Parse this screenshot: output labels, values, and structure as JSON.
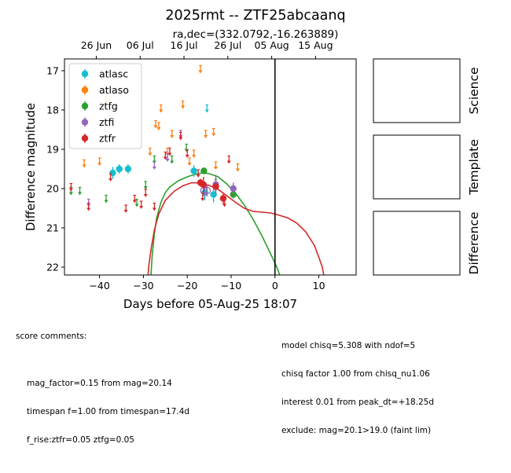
{
  "chart_data": {
    "type": "scatter",
    "title": "2025rmt -- ZTF25abcaanq",
    "subtitle": "ra,dec=(332.0792,-16.263889)",
    "xlabel": "Days before 05-Aug-25 18:07",
    "ylabel": "Difference magnitude",
    "xlim": [
      -48,
      18.5
    ],
    "ylim": [
      22.2,
      16.7
    ],
    "x_ticks": [
      -40,
      -30,
      -20,
      -10,
      0,
      10
    ],
    "x_tick_labels": [
      "−40",
      "−30",
      "−20",
      "−10",
      "0",
      "10"
    ],
    "y_ticks": [
      17,
      18,
      19,
      20,
      21,
      22
    ],
    "y_tick_labels": [
      "17",
      "18",
      "19",
      "20",
      "21",
      "22"
    ],
    "top_axis": {
      "ticks": [
        -40.75,
        -30.75,
        -20.75,
        -10.75,
        -0.75,
        9.25
      ],
      "labels": [
        "26 Jun",
        "06 Jul",
        "16 Jul",
        "26 Jul",
        "05 Aug",
        "15 Aug"
      ]
    },
    "vline_x": 0,
    "grid": false,
    "legend_position": "upper-left",
    "series": [
      {
        "name": "atlasc",
        "color": "#17becf",
        "detections": [
          {
            "x": -37,
            "y": 19.6,
            "err": 0.15
          },
          {
            "x": -35.5,
            "y": 19.5,
            "err": 0.12
          },
          {
            "x": -33.5,
            "y": 19.5,
            "err": 0.12
          },
          {
            "x": -18.5,
            "y": 19.55,
            "err": 0.15
          },
          {
            "x": -16,
            "y": 20.1,
            "err": 0.2
          },
          {
            "x": -14,
            "y": 20.15,
            "err": 0.2
          }
        ],
        "upper_limits": [
          {
            "x": -46.5,
            "y": 20.05
          },
          {
            "x": -15.5,
            "y": 17.95
          }
        ]
      },
      {
        "name": "atlaso",
        "color": "#ff7f0e",
        "detections": [],
        "upper_limits": [
          {
            "x": -43.5,
            "y": 19.35
          },
          {
            "x": -40,
            "y": 19.3
          },
          {
            "x": -38.5,
            "y": 17.7
          },
          {
            "x": -28.5,
            "y": 19.05
          },
          {
            "x": -27.2,
            "y": 18.35
          },
          {
            "x": -26.5,
            "y": 18.4
          },
          {
            "x": -26,
            "y": 17.95
          },
          {
            "x": -24.5,
            "y": 19.05
          },
          {
            "x": -23.5,
            "y": 18.6
          },
          {
            "x": -21,
            "y": 17.85
          },
          {
            "x": -19.5,
            "y": 19.3
          },
          {
            "x": -18.5,
            "y": 19.1
          },
          {
            "x": -17,
            "y": 16.95
          },
          {
            "x": -15.8,
            "y": 18.6
          },
          {
            "x": -14,
            "y": 18.55
          },
          {
            "x": -13.5,
            "y": 19.4
          },
          {
            "x": -8.5,
            "y": 19.45
          }
        ]
      },
      {
        "name": "ztfg",
        "color": "#2ca02c",
        "detections": [
          {
            "x": -16.2,
            "y": 19.55,
            "err": 0.06
          },
          {
            "x": -9.5,
            "y": 20.15,
            "err": 0.1
          }
        ],
        "upper_limits": [
          {
            "x": -46.5,
            "y": 20.05
          },
          {
            "x": -44.5,
            "y": 20.05
          },
          {
            "x": -38.5,
            "y": 20.25
          },
          {
            "x": -31.5,
            "y": 20.35
          },
          {
            "x": -29.5,
            "y": 19.9
          },
          {
            "x": -27.5,
            "y": 19.25
          },
          {
            "x": -23.5,
            "y": 19.25
          },
          {
            "x": -20.2,
            "y": 18.95
          },
          {
            "x": -13.5,
            "y": 19.85
          }
        ]
      },
      {
        "name": "ztfi",
        "color": "#9467bd",
        "detections": [
          {
            "x": -16.2,
            "y": 20.05,
            "err": 0.15,
            "open": true
          },
          {
            "x": -15.5,
            "y": 20.05,
            "err": 0.15,
            "open": true
          },
          {
            "x": -13.5,
            "y": 19.9,
            "err": 0.25
          },
          {
            "x": -9.5,
            "y": 20.0,
            "err": 0.15
          }
        ],
        "upper_limits": [
          {
            "x": -42.5,
            "y": 20.35
          },
          {
            "x": -27.5,
            "y": 19.4
          },
          {
            "x": -24.5,
            "y": 19.2
          },
          {
            "x": -21.5,
            "y": 18.6
          }
        ]
      },
      {
        "name": "ztfr",
        "color": "#d62728",
        "detections": [
          {
            "x": -17,
            "y": 19.85,
            "err": 0.1
          },
          {
            "x": -16.3,
            "y": 19.9,
            "err": 0.2
          },
          {
            "x": -13.5,
            "y": 19.95,
            "err": 0.1
          },
          {
            "x": -11.8,
            "y": 20.25,
            "err": 0.15
          }
        ],
        "upper_limits": [
          {
            "x": -46.5,
            "y": 19.95
          },
          {
            "x": -42.5,
            "y": 20.45
          },
          {
            "x": -37.5,
            "y": 19.7
          },
          {
            "x": -34,
            "y": 20.5
          },
          {
            "x": -32,
            "y": 20.25
          },
          {
            "x": -30.5,
            "y": 20.4
          },
          {
            "x": -29.5,
            "y": 20.1
          },
          {
            "x": -27.5,
            "y": 20.45
          },
          {
            "x": -25,
            "y": 19.15
          },
          {
            "x": -24,
            "y": 19.05
          },
          {
            "x": -21.5,
            "y": 18.65
          },
          {
            "x": -20,
            "y": 19.1
          },
          {
            "x": -17.5,
            "y": 19.6
          },
          {
            "x": -16.5,
            "y": 20.2
          },
          {
            "x": -11.5,
            "y": 20.35
          },
          {
            "x": -10.5,
            "y": 19.25
          }
        ]
      }
    ],
    "model_curves": [
      {
        "color": "#2ca02c",
        "points": [
          [
            -28.3,
            22.25
          ],
          [
            -28,
            21.7
          ],
          [
            -27.5,
            21.15
          ],
          [
            -27,
            20.75
          ],
          [
            -26,
            20.35
          ],
          [
            -25,
            20.1
          ],
          [
            -24,
            19.96
          ],
          [
            -22,
            19.8
          ],
          [
            -20,
            19.7
          ],
          [
            -18,
            19.63
          ],
          [
            -16.5,
            19.6
          ],
          [
            -15,
            19.62
          ],
          [
            -13,
            19.7
          ],
          [
            -11,
            19.88
          ],
          [
            -9,
            20.12
          ],
          [
            -7,
            20.42
          ],
          [
            -5,
            20.78
          ],
          [
            -3,
            21.2
          ],
          [
            -1,
            21.66
          ],
          [
            0.5,
            22.02
          ],
          [
            1.2,
            22.25
          ]
        ]
      },
      {
        "color": "#d62728",
        "points": [
          [
            -29,
            22.25
          ],
          [
            -28.7,
            21.9
          ],
          [
            -28.2,
            21.5
          ],
          [
            -27.5,
            21.05
          ],
          [
            -26.5,
            20.65
          ],
          [
            -25,
            20.3
          ],
          [
            -23,
            20.07
          ],
          [
            -21,
            19.93
          ],
          [
            -19,
            19.85
          ],
          [
            -17,
            19.86
          ],
          [
            -15,
            19.92
          ],
          [
            -13,
            20.02
          ],
          [
            -11,
            20.18
          ],
          [
            -9,
            20.35
          ],
          [
            -7,
            20.5
          ],
          [
            -5,
            20.58
          ],
          [
            -3,
            20.6
          ],
          [
            -1,
            20.62
          ],
          [
            1,
            20.68
          ],
          [
            3,
            20.75
          ],
          [
            5,
            20.88
          ],
          [
            7,
            21.1
          ],
          [
            9,
            21.45
          ],
          [
            10,
            21.75
          ],
          [
            10.8,
            22.0
          ],
          [
            11.2,
            22.25
          ]
        ]
      }
    ]
  },
  "panels": [
    {
      "label": "Science"
    },
    {
      "label": "Template"
    },
    {
      "label": "Difference"
    }
  ],
  "comments_left": {
    "heading": "score comments:",
    "lines": [
      "mag_factor=0.15 from mag=20.14",
      "timespan f=1.00 from timespan=17.4d",
      "f_rise:ztfr=0.05 ztfg=0.05"
    ]
  },
  "comments_right": {
    "lines": [
      "model chisq=5.308 with ndof=5",
      "chisq factor 1.00 from chisq_nu1.06",
      "interest 0.01 from peak_dt=+18.25d",
      "exclude: mag=20.1>19.0 (faint lim)"
    ]
  }
}
